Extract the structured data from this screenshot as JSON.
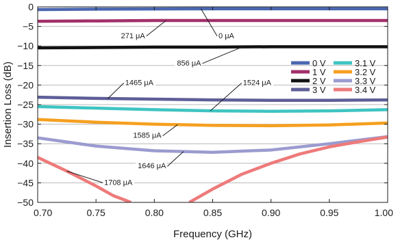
{
  "chart_data": {
    "type": "line",
    "xlabel": "Frequency (GHz)",
    "ylabel": "Insertion Loss (dB)",
    "xlim": [
      0.7,
      1.0
    ],
    "ylim": [
      -50,
      0
    ],
    "x_ticks": [
      0.7,
      0.75,
      0.8,
      0.85,
      0.9,
      0.95,
      1.0
    ],
    "x_tick_labels": [
      "0.70",
      "0.75",
      "0.80",
      "0.85",
      "0.90",
      "0.95",
      "1.00"
    ],
    "y_ticks": [
      0,
      -5,
      -10,
      -15,
      -20,
      -25,
      -30,
      -35,
      -40,
      -45,
      -50
    ],
    "y_tick_labels": [
      "0",
      "−5",
      "−10",
      "−15",
      "−20",
      "−25",
      "−30",
      "−35",
      "−40",
      "−45",
      "−50"
    ],
    "grid": "horizontal",
    "legend_position": "top-right",
    "series": [
      {
        "name": "0 V",
        "color": "#4a67b0",
        "x": [
          0.7,
          0.75,
          0.8,
          0.85,
          0.9,
          0.95,
          1.0
        ],
        "y": [
          -0.7,
          -0.6,
          -0.55,
          -0.5,
          -0.5,
          -0.5,
          -0.5
        ]
      },
      {
        "name": "1 V",
        "color": "#a2306a",
        "x": [
          0.7,
          0.75,
          0.8,
          0.85,
          0.9,
          0.95,
          1.0
        ],
        "y": [
          -3.7,
          -3.6,
          -3.5,
          -3.5,
          -3.5,
          -3.5,
          -3.5
        ]
      },
      {
        "name": "2 V",
        "color": "#111111",
        "x": [
          0.7,
          0.75,
          0.8,
          0.85,
          0.9,
          0.95,
          1.0
        ],
        "y": [
          -10.5,
          -10.4,
          -10.3,
          -10.3,
          -10.2,
          -10.2,
          -10.2
        ]
      },
      {
        "name": "3 V",
        "color": "#5e5e98",
        "x": [
          0.7,
          0.75,
          0.8,
          0.85,
          0.9,
          0.95,
          1.0
        ],
        "y": [
          -23.1,
          -23.4,
          -23.6,
          -23.8,
          -23.9,
          -23.9,
          -23.8
        ]
      },
      {
        "name": "3.1 V",
        "color": "#3fc4c2",
        "x": [
          0.7,
          0.75,
          0.8,
          0.85,
          0.9,
          0.95,
          1.0
        ],
        "y": [
          -25.5,
          -25.9,
          -26.3,
          -26.6,
          -26.7,
          -26.6,
          -26.3
        ]
      },
      {
        "name": "3.2 V",
        "color": "#f5a020",
        "x": [
          0.7,
          0.75,
          0.8,
          0.85,
          0.9,
          0.95,
          1.0
        ],
        "y": [
          -28.8,
          -29.5,
          -30.0,
          -30.3,
          -30.4,
          -30.2,
          -29.7
        ]
      },
      {
        "name": "3.3 V",
        "color": "#9b9bd0",
        "x": [
          0.7,
          0.75,
          0.8,
          0.85,
          0.9,
          0.95,
          1.0
        ],
        "y": [
          -33.5,
          -35.6,
          -36.8,
          -37.2,
          -36.6,
          -35.0,
          -33.2
        ]
      },
      {
        "name": "3.4 V",
        "color": "#ee7a7a",
        "x": [
          0.7,
          0.725,
          0.75,
          0.765,
          0.78,
          0.83,
          0.85,
          0.875,
          0.9,
          0.925,
          0.95,
          0.975,
          1.0
        ],
        "y": [
          -38.5,
          -42.0,
          -45.8,
          -48.3,
          -50.0,
          -50.0,
          -46.6,
          -42.8,
          -40.0,
          -37.6,
          -35.8,
          -34.5,
          -33.3
        ]
      }
    ],
    "annotations": [
      {
        "text": "0 μA",
        "x": 0.855,
        "y": -8.0,
        "to_x": 0.84,
        "to_y": -0.5
      },
      {
        "text": "271 μA",
        "x": 0.792,
        "y": -8.0,
        "to_x": 0.81,
        "to_y": -3.5
      },
      {
        "text": "856 μA",
        "x": 0.84,
        "y": -15.0,
        "to_x": 0.875,
        "to_y": -10.3
      },
      {
        "text": "1465 μA",
        "x": 0.775,
        "y": -20.0,
        "to_x": 0.76,
        "to_y": -23.5
      },
      {
        "text": "1524 μA",
        "x": 0.876,
        "y": -20.0,
        "to_x": 0.848,
        "to_y": -26.6
      },
      {
        "text": "1585 μA",
        "x": 0.806,
        "y": -33.5,
        "to_x": 0.82,
        "to_y": -30.1
      },
      {
        "text": "1646 μA",
        "x": 0.81,
        "y": -41.3,
        "to_x": 0.825,
        "to_y": -37.0
      },
      {
        "text": "1708 μA",
        "x": 0.757,
        "y": -45.5,
        "to_x": 0.725,
        "to_y": -42.0
      }
    ]
  }
}
